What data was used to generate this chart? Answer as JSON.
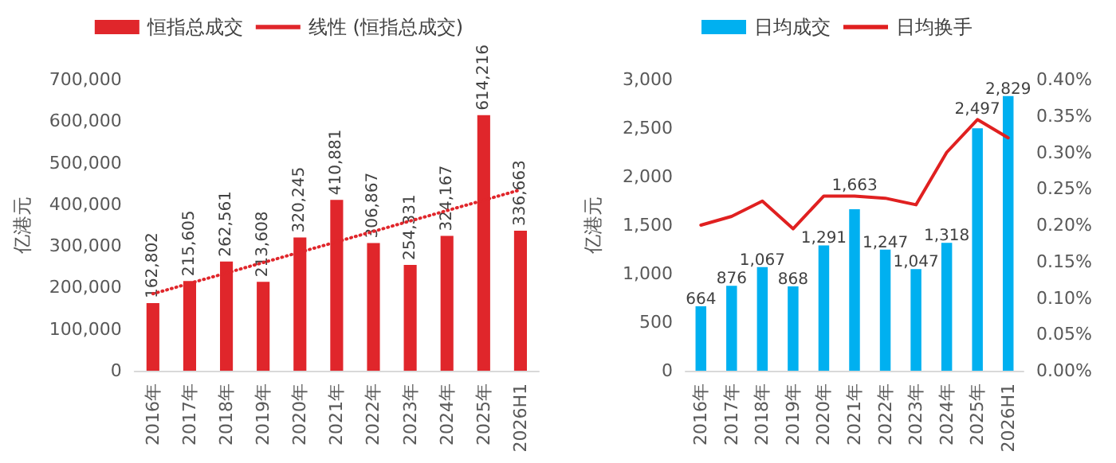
{
  "chart_data": [
    {
      "type": "bar",
      "ylabel": "亿港元",
      "categories": [
        "2016年",
        "2017年",
        "2018年",
        "2019年",
        "2020年",
        "2021年",
        "2022年",
        "2023年",
        "2024年",
        "2025年",
        "2026H1"
      ],
      "series": [
        {
          "name": "恒指总成交",
          "color": "#e0262b",
          "values": [
            162802,
            215605,
            262561,
            213608,
            320245,
            410881,
            306867,
            254331,
            324167,
            614216,
            336663
          ],
          "value_labels": [
            "162,802",
            "215,605",
            "262,561",
            "213,608",
            "320,245",
            "410,881",
            "306,867",
            "254,331",
            "324,167",
            "614,216",
            "336,663"
          ]
        },
        {
          "name": "线性 (恒指总成交)",
          "type": "line",
          "color": "#e0262b",
          "line_style": "dotted",
          "marker": "none",
          "values": [
            185000,
            210000,
            235000,
            260000,
            285000,
            310000,
            335000,
            360000,
            385000,
            410000,
            435000
          ]
        }
      ],
      "ylim": [
        0,
        700000
      ],
      "yticks": [
        {
          "value": 0,
          "label": "0"
        },
        {
          "value": 100000,
          "label": "100,000"
        },
        {
          "value": 200000,
          "label": "200,000"
        },
        {
          "value": 300000,
          "label": "300,000"
        },
        {
          "value": 400000,
          "label": "400,000"
        },
        {
          "value": 500000,
          "label": "500,000"
        },
        {
          "value": 600000,
          "label": "600,000"
        },
        {
          "value": 700000,
          "label": "700,000"
        }
      ],
      "grid": false,
      "legend": "top"
    },
    {
      "type": "bar",
      "ylabel": "亿港元",
      "categories": [
        "2016年",
        "2017年",
        "2018年",
        "2019年",
        "2020年",
        "2021年",
        "2022年",
        "2023年",
        "2024年",
        "2025年",
        "2026H1"
      ],
      "series": [
        {
          "name": "日均成交",
          "color": "#00b0f0",
          "values": [
            664,
            876,
            1067,
            868,
            1291,
            1663,
            1247,
            1047,
            1318,
            2497,
            2829
          ],
          "value_labels": [
            "664",
            "876",
            "1,067",
            "868",
            "1,291",
            "1,663",
            "1,247",
            "1,047",
            "1,318",
            "2,497",
            "2,829"
          ]
        },
        {
          "name": "日均换手",
          "type": "line",
          "axis": "y2",
          "color": "#e02020",
          "line_style": "solid",
          "marker": "none",
          "values": [
            0.2,
            0.212,
            0.233,
            0.195,
            0.24,
            0.24,
            0.237,
            0.228,
            0.3,
            0.345,
            0.32
          ]
        }
      ],
      "ylim": [
        0,
        3000
      ],
      "yticks": [
        {
          "value": 0,
          "label": "0"
        },
        {
          "value": 500,
          "label": "500"
        },
        {
          "value": 1000,
          "label": "1,000"
        },
        {
          "value": 1500,
          "label": "1,500"
        },
        {
          "value": 2000,
          "label": "2,000"
        },
        {
          "value": 2500,
          "label": "2,500"
        },
        {
          "value": 3000,
          "label": "3,000"
        }
      ],
      "y2lim": [
        0,
        0.4
      ],
      "y2ticks": [
        {
          "value": 0,
          "label": "0.00%"
        },
        {
          "value": 0.05,
          "label": "0.05%"
        },
        {
          "value": 0.1,
          "label": "0.10%"
        },
        {
          "value": 0.15,
          "label": "0.15%"
        },
        {
          "value": 0.2,
          "label": "0.20%"
        },
        {
          "value": 0.25,
          "label": "0.25%"
        },
        {
          "value": 0.3,
          "label": "0.30%"
        },
        {
          "value": 0.35,
          "label": "0.35%"
        },
        {
          "value": 0.4,
          "label": "0.40%"
        }
      ],
      "grid": false,
      "legend": "top"
    }
  ]
}
